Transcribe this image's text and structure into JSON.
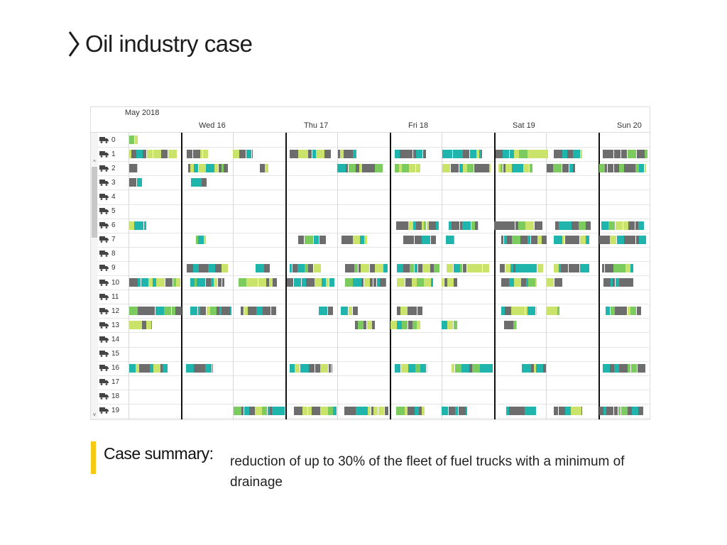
{
  "title": "Oil industry case",
  "schedule": {
    "month_label": "May 2018",
    "days": [
      "Wed 16",
      "Thu 17",
      "Fri 18",
      "Sat 19",
      "Sun 20"
    ],
    "rows": [
      "0",
      "1",
      "2",
      "3",
      "4",
      "5",
      "6",
      "7",
      "8",
      "9",
      "10",
      "11",
      "12",
      "13",
      "14",
      "15",
      "16",
      "17",
      "18",
      "19"
    ],
    "scroll_up": "^",
    "scroll_down": "˅"
  },
  "summary": {
    "label": "Case summary:",
    "text": "reduction of up to 30% of the fleet of fuel trucks with a minimum of drainage"
  },
  "colors": {
    "accent": "#f6c915",
    "teal": "#1fb5ad",
    "gray": "#6d6d6d",
    "yellow_green": "#c9e36b",
    "green": "#7ccb5f",
    "divider": "#111111"
  },
  "icons": {
    "title_marker": "chevron-right-icon",
    "row_icon": "truck-icon"
  }
}
